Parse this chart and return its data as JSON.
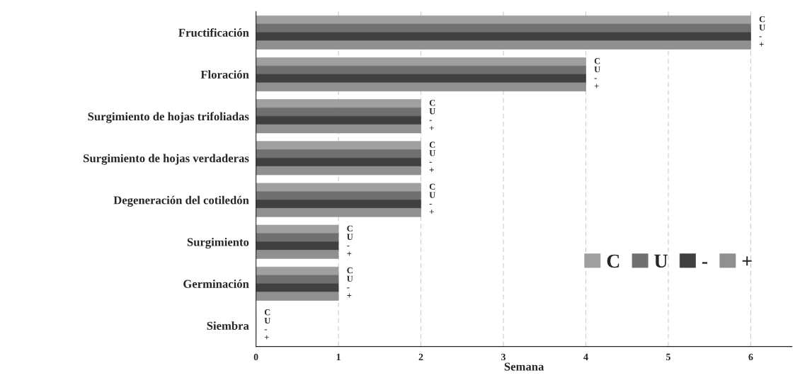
{
  "chart_data": {
    "type": "bar",
    "orientation": "horizontal",
    "xlabel": "Semana",
    "categories": [
      "Fructificación",
      "Floración",
      "Surgimiento de hojas trifoliadas",
      "Surgimiento de hojas verdaderas",
      "Degeneración del cotiledón",
      "Surgimiento",
      "Germinación",
      "Siembra"
    ],
    "series": [
      {
        "name": "C",
        "color": "#a0a0a0",
        "values": [
          6,
          4,
          2,
          2,
          2,
          1,
          1,
          0
        ],
        "value_labels": [
          "C",
          "C",
          "C",
          "C",
          "C",
          "C",
          "C",
          "C"
        ]
      },
      {
        "name": "U",
        "color": "#707070",
        "values": [
          6,
          4,
          2,
          2,
          2,
          1,
          1,
          0
        ],
        "value_labels": [
          "U",
          "U",
          "U",
          "U",
          "U",
          "U",
          "U",
          "U"
        ]
      },
      {
        "name": "-",
        "color": "#404040",
        "values": [
          6,
          4,
          2,
          2,
          2,
          1,
          1,
          0
        ],
        "value_labels": [
          "-",
          "-",
          "-",
          "-",
          "-",
          "-",
          "-",
          "-"
        ]
      },
      {
        "name": "+",
        "color": "#909090",
        "values": [
          6,
          4,
          2,
          2,
          2,
          1,
          1,
          0
        ],
        "value_labels": [
          "+",
          "+",
          "+",
          "+",
          "+",
          "+",
          "+",
          "+"
        ]
      }
    ],
    "xlim": [
      0,
      6.5
    ],
    "xticks": [
      0,
      1,
      2,
      3,
      4,
      5,
      6
    ],
    "grid": "x",
    "legend": "right"
  }
}
